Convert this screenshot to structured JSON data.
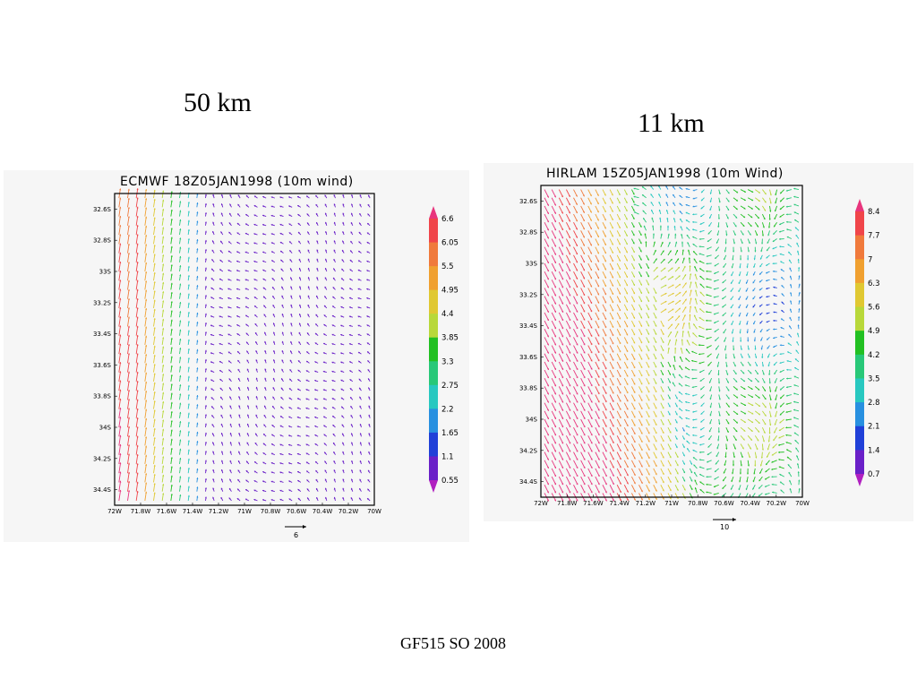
{
  "slide": {
    "label_left": "50 km",
    "label_right": "11 km",
    "footer": "GF515 SO 2008"
  },
  "chart_data": [
    {
      "type": "vector",
      "title": "ECMWF 18Z05JAN1998 (10m wind)",
      "x_ticks": [
        "72W",
        "71.8W",
        "71.6W",
        "71.4W",
        "71.2W",
        "71W",
        "70.8W",
        "70.6W",
        "70.4W",
        "70.2W",
        "70W"
      ],
      "y_ticks": [
        "32.6S",
        "32.8S",
        "33S",
        "33.2S",
        "33.4S",
        "33.6S",
        "33.8S",
        "34S",
        "34.2S",
        "34.4S"
      ],
      "colorbar": [
        "6.6",
        "6.05",
        "5.5",
        "4.95",
        "4.4",
        "3.85",
        "3.3",
        "2.75",
        "2.2",
        "1.65",
        "1.1",
        "0.55"
      ],
      "colorbar_colors": [
        "#e8357d",
        "#f0454a",
        "#f07a3c",
        "#f0a030",
        "#e0c832",
        "#b8d83a",
        "#22c022",
        "#28c878",
        "#28c8c0",
        "#2890e0",
        "#2040d8",
        "#6a20c8",
        "#b020c0"
      ],
      "reference_vector": "6",
      "xlim": [
        72,
        70
      ],
      "ylim": [
        32.6,
        34.4
      ]
    },
    {
      "type": "vector",
      "title": "HIRLAM 15Z05JAN1998 (10m Wind)",
      "x_ticks": [
        "72W",
        "71.8W",
        "71.6W",
        "71.4W",
        "71.2W",
        "71W",
        "70.8W",
        "70.6W",
        "70.4W",
        "70.2W",
        "70W"
      ],
      "y_ticks": [
        "32.6S",
        "32.8S",
        "33S",
        "33.2S",
        "33.4S",
        "33.6S",
        "33.8S",
        "34S",
        "34.2S",
        "34.4S"
      ],
      "colorbar": [
        "8.4",
        "7.7",
        "7",
        "6.3",
        "5.6",
        "4.9",
        "4.2",
        "3.5",
        "2.8",
        "2.1",
        "1.4",
        "0.7"
      ],
      "colorbar_colors": [
        "#e8357d",
        "#f0454a",
        "#f07a3c",
        "#f0a030",
        "#e0c832",
        "#b8d83a",
        "#22c022",
        "#28c878",
        "#28c8c0",
        "#2890e0",
        "#2040d8",
        "#6a20c8",
        "#b020c0"
      ],
      "reference_vector": "10",
      "xlim": [
        72,
        70
      ],
      "ylim": [
        32.6,
        34.4
      ]
    }
  ]
}
